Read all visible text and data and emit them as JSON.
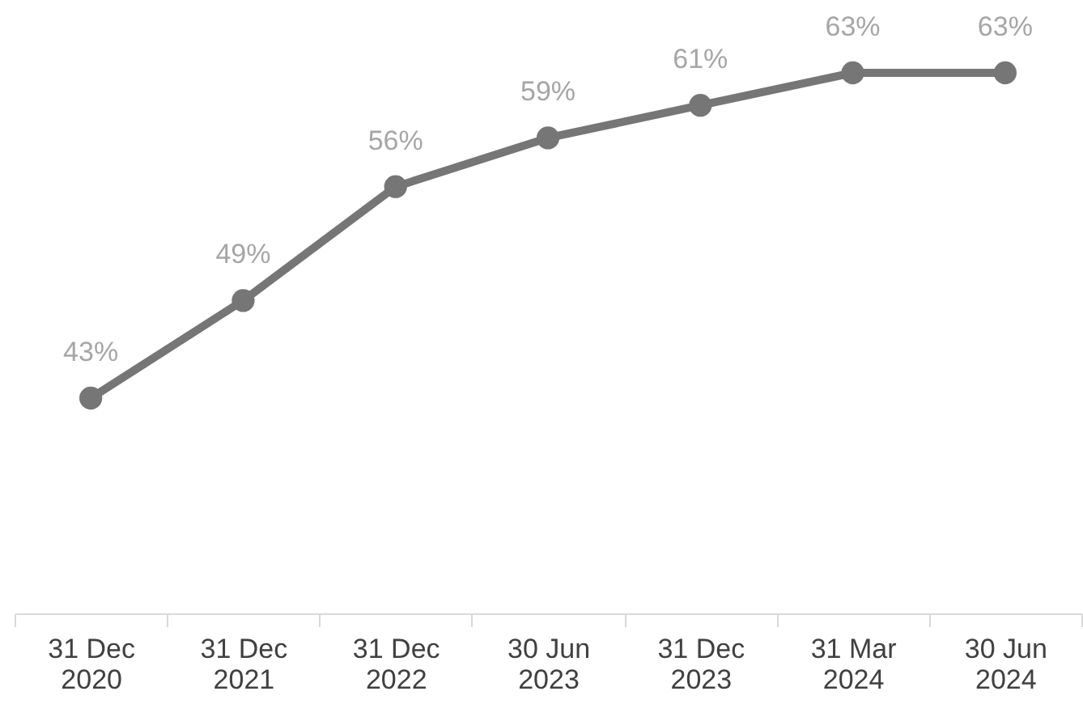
{
  "chart_data": {
    "type": "line",
    "categories": [
      "31 Dec 2020",
      "31 Dec 2021",
      "31 Dec 2022",
      "30 Jun 2023",
      "31 Dec 2023",
      "31 Mar 2024",
      "30 Jun 2024"
    ],
    "series": [
      {
        "color": "#767676",
        "values": [
          43,
          49,
          56,
          59,
          61,
          63,
          63
        ],
        "value_labels": [
          "43%",
          "49%",
          "56%",
          "59%",
          "61%",
          "63%",
          "63%"
        ]
      }
    ],
    "tick_labels": "x",
    "grid": false,
    "legend": false,
    "marker": "circle",
    "line_style": "solid"
  }
}
